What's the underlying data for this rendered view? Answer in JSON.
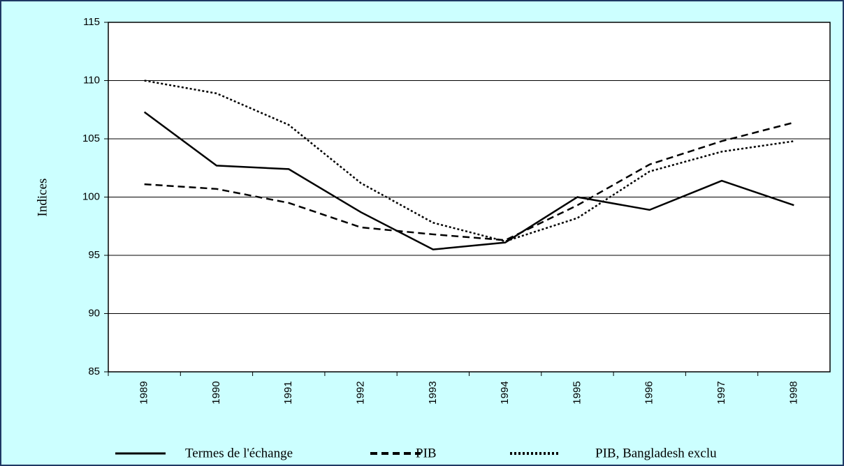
{
  "chart_data": {
    "type": "line",
    "y_label": "Indices",
    "categories": [
      "1989",
      "1990",
      "1991",
      "1992",
      "1993",
      "1994",
      "1995",
      "1996",
      "1997",
      "1998"
    ],
    "series": [
      {
        "name": "Termes de l'échange",
        "color": "#000000",
        "dash": "solid",
        "values": [
          107.3,
          102.7,
          102.4,
          98.7,
          95.5,
          96.1,
          100.0,
          98.9,
          101.4,
          99.3
        ]
      },
      {
        "name": "PIB",
        "color": "#000000",
        "dash": "dashed",
        "values": [
          101.1,
          100.7,
          99.5,
          97.4,
          96.8,
          96.3,
          99.3,
          102.8,
          104.8,
          106.4
        ]
      },
      {
        "name": "PIB, Bangladesh exclu",
        "color": "#000000",
        "dash": "dotted",
        "values": [
          110.0,
          108.9,
          106.2,
          101.2,
          97.8,
          96.2,
          98.2,
          102.2,
          103.9,
          104.8
        ]
      }
    ],
    "ylim": [
      85,
      115
    ],
    "yticks": [
      85,
      90,
      95,
      100,
      105,
      110,
      115
    ],
    "grid": true
  }
}
